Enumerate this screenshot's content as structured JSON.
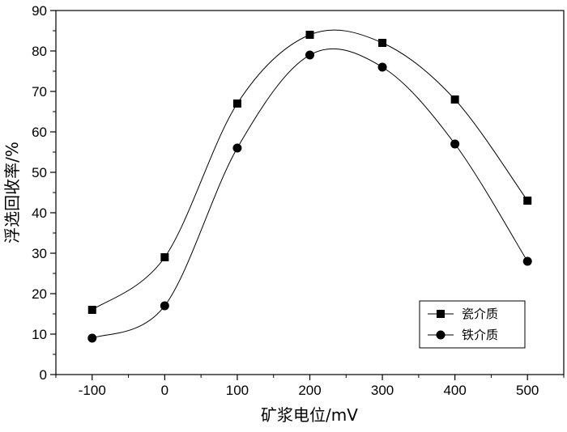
{
  "chart_data": {
    "type": "line",
    "title": "",
    "xlabel": "矿浆电位/mV",
    "ylabel": "浮选回收率/%",
    "x": [
      -100,
      0,
      100,
      200,
      300,
      400,
      500
    ],
    "xticks": [
      "-100",
      "0",
      "100",
      "200",
      "300",
      "400",
      "500"
    ],
    "xlim": [
      -150,
      550
    ],
    "yticks": [
      "0",
      "10",
      "20",
      "30",
      "40",
      "50",
      "60",
      "70",
      "80",
      "90"
    ],
    "ylim": [
      0,
      90
    ],
    "grid": false,
    "legend_position": "bottom-right",
    "series": [
      {
        "name": "瓷介质",
        "marker": "square",
        "color": "#000000",
        "values": [
          16,
          29,
          67,
          84,
          82,
          68,
          43
        ]
      },
      {
        "name": "铁介质",
        "marker": "circle",
        "color": "#000000",
        "values": [
          9,
          17,
          56,
          79,
          76,
          57,
          28
        ]
      }
    ]
  }
}
